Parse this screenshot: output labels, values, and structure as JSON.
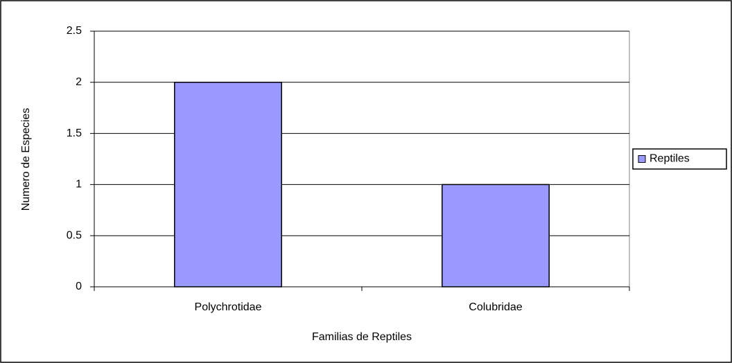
{
  "chart_data": {
    "type": "bar",
    "categories": [
      "Polychrotidae",
      "Colubridae"
    ],
    "series": [
      {
        "name": "Reptiles",
        "color": "#9999ff",
        "values": [
          2,
          1
        ]
      }
    ],
    "xlabel": "Familias de Reptiles",
    "ylabel": "Numero de Especies",
    "ylim": [
      0,
      2.5
    ],
    "yticks": [
      0,
      0.5,
      1,
      1.5,
      2,
      2.5
    ],
    "grid": true,
    "legend": "right"
  }
}
